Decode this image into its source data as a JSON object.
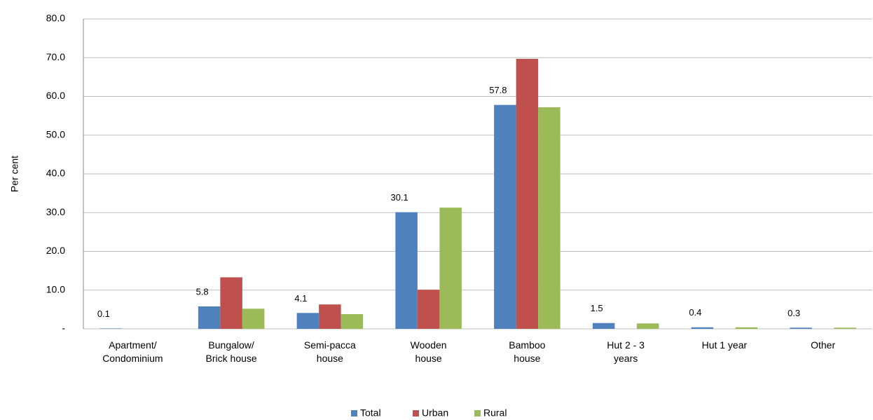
{
  "chart_data": {
    "type": "bar",
    "y_label": "Per cent",
    "categories": [
      "Apartment/\nCondominium",
      "Bungalow/\nBrick house",
      "Semi-pacca\nhouse",
      "Wooden\nhouse",
      "Bamboo\nhouse",
      "Hut 2 - 3\nyears",
      "Hut 1 year",
      "Other"
    ],
    "series": [
      {
        "name": "Total",
        "color": "#4f81bd",
        "values": [
          0.1,
          5.8,
          4.1,
          30.1,
          57.8,
          1.5,
          0.4,
          0.3
        ],
        "data_labels": true
      },
      {
        "name": "Urban",
        "color": "#c0504d",
        "values": [
          0,
          13.3,
          6.3,
          10.1,
          69.7,
          0,
          0,
          0
        ]
      },
      {
        "name": "Rural",
        "color": "#9bbb59",
        "values": [
          0,
          5.2,
          3.8,
          31.3,
          57.2,
          1.4,
          0.4,
          0.3
        ]
      }
    ],
    "ylim": [
      0,
      80
    ],
    "yticks": [
      {
        "value": 0,
        "label": "-"
      },
      {
        "value": 10,
        "label": "10.0"
      },
      {
        "value": 20,
        "label": "20.0"
      },
      {
        "value": 30,
        "label": "30.0"
      },
      {
        "value": 40,
        "label": "40.0"
      },
      {
        "value": 50,
        "label": "50.0"
      },
      {
        "value": 60,
        "label": "60.0"
      },
      {
        "value": 70,
        "label": "70.0"
      },
      {
        "value": 80,
        "label": "80.0"
      }
    ],
    "grid": true,
    "legend": "bottom"
  }
}
